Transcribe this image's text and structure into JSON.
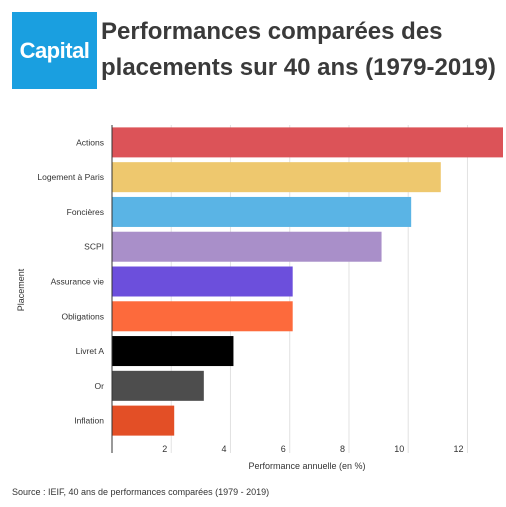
{
  "header": {
    "logo_text": "Capital",
    "logo_color": "#1a9fe0",
    "title": "Performances comparées des placements sur 40 ans (1979-2019)"
  },
  "source": "Source : IEIF, 40 ans de performances comparées (1979 - 2019)",
  "chart_data": {
    "type": "bar",
    "orientation": "horizontal",
    "title": "Performances comparées des placements sur 40 ans (1979-2019)",
    "xlabel": "Performance annuelle (en %)",
    "ylabel": "Placement",
    "xlim": [
      0,
      13.2
    ],
    "xticks": [
      2,
      4,
      6,
      8,
      10,
      12
    ],
    "grid": true,
    "categories": [
      "Actions",
      "Logement à Paris",
      "Foncières",
      "SCPI",
      "Assurance vie",
      "Obligations",
      "Livret A",
      "Or",
      "Inflation"
    ],
    "values": [
      13.2,
      11.1,
      10.1,
      9.1,
      6.1,
      6.1,
      4.1,
      3.1,
      2.1
    ],
    "colors": [
      "#dc5358",
      "#eec86e",
      "#5ab4e5",
      "#a98fc9",
      "#6c4fdc",
      "#fd6a3c",
      "#000000",
      "#4d4d4d",
      "#e34f26"
    ]
  }
}
